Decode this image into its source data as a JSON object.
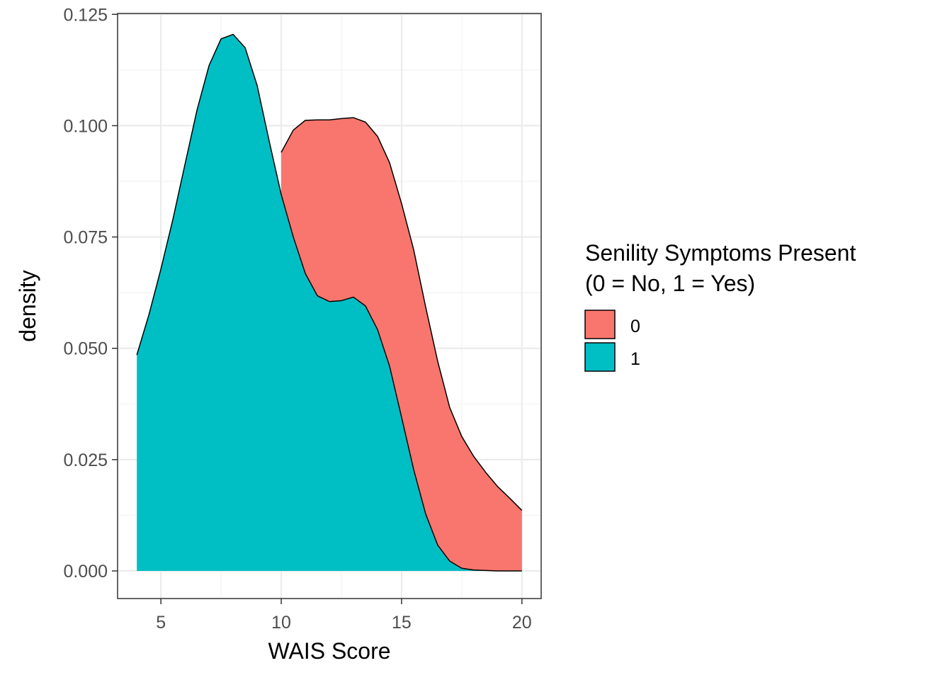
{
  "chart_data": {
    "type": "area",
    "subtype": "density",
    "xlabel": "WAIS Score",
    "ylabel": "density",
    "xlim": [
      3.2,
      20.8
    ],
    "ylim": [
      -0.0062,
      0.1252
    ],
    "x_ticks": [
      "5",
      "10",
      "15",
      "20"
    ],
    "x_tick_values": [
      5,
      10,
      15,
      20
    ],
    "y_ticks": [
      "0.000",
      "0.025",
      "0.050",
      "0.075",
      "0.100",
      "0.125"
    ],
    "y_tick_values": [
      0,
      0.025,
      0.05,
      0.075,
      0.1,
      0.125
    ],
    "grid": true,
    "legend": {
      "position": "right",
      "title_lines": [
        "Senility Symptoms Present",
        "(0 = No, 1 = Yes)"
      ]
    },
    "series": [
      {
        "name": "0",
        "color": "#F8766D",
        "x": [
          10,
          10.5,
          11,
          11.5,
          12,
          12.5,
          13,
          13.5,
          14,
          14.5,
          15,
          15.5,
          16,
          16.5,
          17,
          17.5,
          18,
          18.5,
          19,
          19.5,
          20
        ],
        "y": [
          0.094,
          0.099,
          0.1012,
          0.1013,
          0.1013,
          0.1016,
          0.1018,
          0.1008,
          0.0976,
          0.0917,
          0.0825,
          0.0722,
          0.0593,
          0.0471,
          0.0367,
          0.0302,
          0.0257,
          0.0221,
          0.0189,
          0.0163,
          0.0136
        ]
      },
      {
        "name": "1",
        "color": "#00BFC4",
        "x": [
          4,
          4.5,
          5,
          5.5,
          6,
          6.5,
          7,
          7.5,
          8,
          8.5,
          9,
          9.5,
          10,
          10.5,
          11,
          11.5,
          12,
          12.5,
          13,
          13.5,
          14,
          14.5,
          15,
          15.5,
          16,
          16.5,
          17,
          17.5,
          18,
          18.5,
          19,
          19.5,
          20
        ],
        "y": [
          0.0485,
          0.0575,
          0.0678,
          0.079,
          0.0913,
          0.1035,
          0.1135,
          0.1195,
          0.1205,
          0.1175,
          0.109,
          0.0965,
          0.0845,
          0.075,
          0.0668,
          0.0618,
          0.0605,
          0.0607,
          0.0615,
          0.0595,
          0.0542,
          0.046,
          0.0345,
          0.0228,
          0.0128,
          0.0058,
          0.0022,
          0.0006,
          0.0002,
          0.0001,
          0.0,
          0.0,
          0.0
        ]
      }
    ]
  }
}
